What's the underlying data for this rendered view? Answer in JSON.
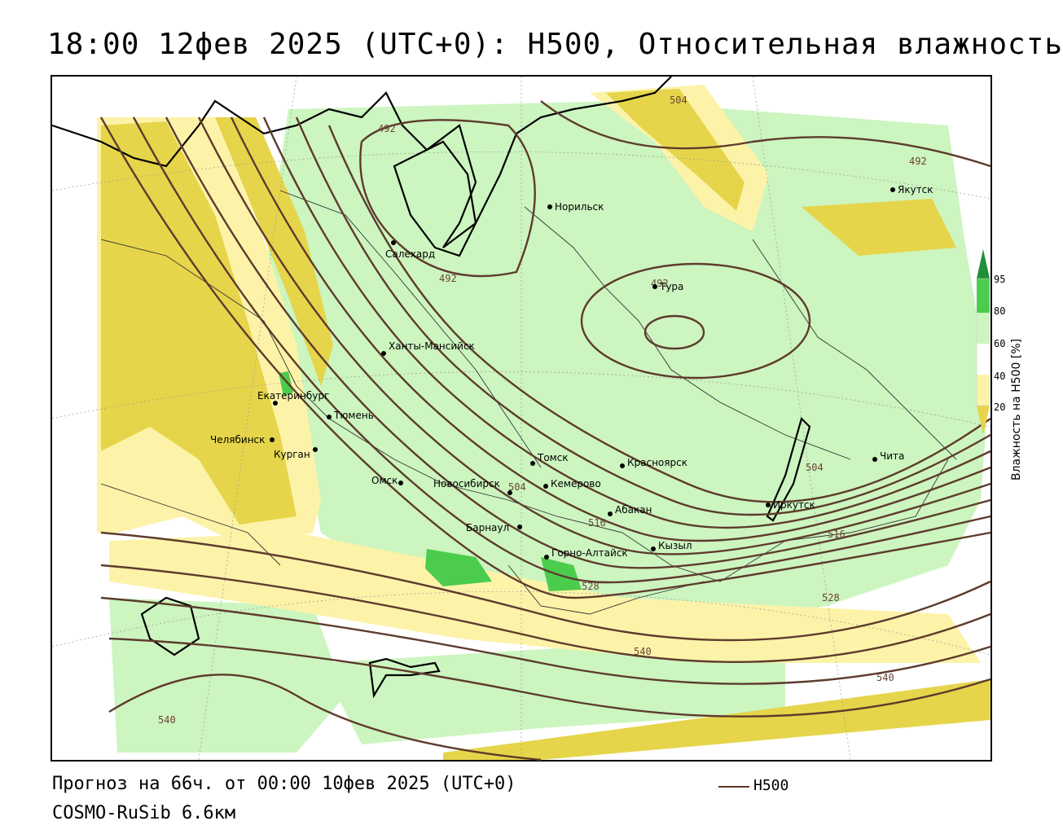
{
  "title": "18:00 12фев 2025 (UTC+0): H500, Относительная влажность",
  "footer": {
    "forecast": "Прогноз на 66ч. от 00:00 10фев 2025 (UTC+0)",
    "model": "COSMO-RuSib 6.6км",
    "legend_label": "H500"
  },
  "colorbar": {
    "title": "Влажность на H500 [%]",
    "ticks": [
      "95",
      "80",
      "60",
      "40",
      "20"
    ],
    "colors": {
      "dark_green": "#1f8f3a",
      "green": "#4ccc4c",
      "light_green": "#ccf5c0",
      "white": "#ffffff",
      "light_yellow": "#fcf3a8",
      "yellow": "#e6d54a"
    }
  },
  "contour_labels": [
    "492",
    "504",
    "492",
    "492",
    "492",
    "504",
    "504",
    "516",
    "516",
    "528",
    "528",
    "540",
    "540",
    "540"
  ],
  "cities": [
    {
      "name": "Норильск"
    },
    {
      "name": "Якутск"
    },
    {
      "name": "Салехард"
    },
    {
      "name": "Тура"
    },
    {
      "name": "Ханты-Мансийск"
    },
    {
      "name": "Екатеринбург"
    },
    {
      "name": "Тюмень"
    },
    {
      "name": "Челябинск"
    },
    {
      "name": "Курган"
    },
    {
      "name": "Омск"
    },
    {
      "name": "Томск"
    },
    {
      "name": "Новосибирск"
    },
    {
      "name": "Кемерово"
    },
    {
      "name": "Красноярск"
    },
    {
      "name": "Абакан"
    },
    {
      "name": "Барнаул"
    },
    {
      "name": "Горно-Алтайск"
    },
    {
      "name": "Кызыл"
    },
    {
      "name": "Иркутск"
    },
    {
      "name": "Чита"
    }
  ]
}
